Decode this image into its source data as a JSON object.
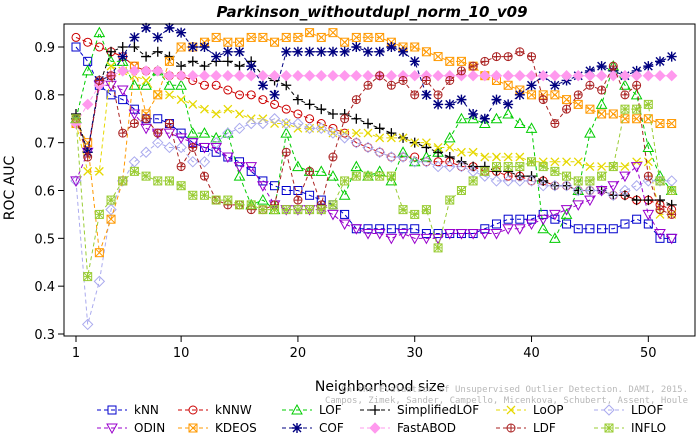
{
  "chart_data": {
    "type": "line",
    "title": "Parkinson_withoutdupl_norm_10_v09",
    "xlabel": "Neighborhood size",
    "ylabel": "ROC AUC",
    "xlim": [
      1,
      52
    ],
    "ylim": [
      0.3,
      0.95
    ],
    "xticks": [
      "1",
      "10",
      "20",
      "30",
      "40",
      "50"
    ],
    "yticks": [
      "0.3",
      "0.4",
      "0.5",
      "0.6",
      "0.7",
      "0.8",
      "0.9"
    ],
    "grid": false,
    "legend_position": "bottom",
    "credit": "Campos, Zimek, Sander, Campello, Micenkova, Schubert, Assent, Houle",
    "credit_line1": "On the Evaluation of Unsupervised Outlier Detection. DAMI, 2015.",
    "x": [
      1,
      2,
      3,
      4,
      5,
      6,
      7,
      8,
      9,
      10,
      11,
      12,
      13,
      14,
      15,
      16,
      17,
      18,
      19,
      20,
      21,
      22,
      23,
      24,
      25,
      26,
      27,
      28,
      29,
      30,
      31,
      32,
      33,
      34,
      35,
      36,
      37,
      38,
      39,
      40,
      41,
      42,
      43,
      44,
      45,
      46,
      47,
      48,
      49,
      50,
      51,
      52
    ],
    "series": [
      {
        "name": "kNN",
        "color": "#0000cc",
        "marker": "square",
        "values": [
          0.9,
          0.87,
          0.82,
          0.8,
          0.79,
          0.77,
          0.75,
          0.75,
          0.74,
          0.72,
          0.7,
          0.69,
          0.68,
          0.67,
          0.66,
          0.64,
          0.62,
          0.61,
          0.6,
          0.6,
          0.59,
          0.58,
          0.57,
          0.55,
          0.52,
          0.52,
          0.52,
          0.52,
          0.52,
          0.52,
          0.51,
          0.51,
          0.51,
          0.51,
          0.51,
          0.52,
          0.53,
          0.54,
          0.54,
          0.54,
          0.55,
          0.54,
          0.53,
          0.52,
          0.52,
          0.52,
          0.52,
          0.53,
          0.54,
          0.53,
          0.5,
          0.5
        ]
      },
      {
        "name": "kNNW",
        "color": "#cc0000",
        "marker": "circle",
        "values": [
          0.92,
          0.91,
          0.9,
          0.89,
          0.88,
          0.86,
          0.85,
          0.85,
          0.84,
          0.84,
          0.83,
          0.82,
          0.82,
          0.81,
          0.8,
          0.8,
          0.79,
          0.78,
          0.77,
          0.76,
          0.75,
          0.74,
          0.73,
          0.72,
          0.7,
          0.69,
          0.68,
          0.67,
          0.67,
          0.67,
          0.66,
          0.66,
          0.66,
          0.65,
          0.65,
          0.64,
          0.64,
          0.63,
          0.63,
          0.62,
          0.62,
          0.61,
          0.61,
          0.6,
          0.6,
          0.6,
          0.59,
          0.59,
          0.58,
          0.58,
          0.57,
          0.56
        ]
      },
      {
        "name": "LOF",
        "color": "#00cc00",
        "marker": "triangle-up",
        "values": [
          0.75,
          0.85,
          0.93,
          0.87,
          0.87,
          0.82,
          0.82,
          0.85,
          0.82,
          0.82,
          0.72,
          0.72,
          0.71,
          0.72,
          0.63,
          0.57,
          0.58,
          0.56,
          0.72,
          0.65,
          0.64,
          0.64,
          0.63,
          0.59,
          0.65,
          0.63,
          0.64,
          0.62,
          0.68,
          0.66,
          0.67,
          0.68,
          0.71,
          0.75,
          0.75,
          0.74,
          0.75,
          0.76,
          0.74,
          0.73,
          0.52,
          0.5,
          0.55,
          0.6,
          0.72,
          0.78,
          0.86,
          0.82,
          0.8,
          0.69,
          0.63,
          0.6
        ]
      },
      {
        "name": "SimplifiedLOF",
        "color": "#000000",
        "marker": "plus",
        "values": [
          0.76,
          0.68,
          0.82,
          0.89,
          0.9,
          0.9,
          0.88,
          0.89,
          0.88,
          0.86,
          0.87,
          0.86,
          0.87,
          0.87,
          0.86,
          0.87,
          0.84,
          0.83,
          0.82,
          0.79,
          0.78,
          0.77,
          0.76,
          0.76,
          0.75,
          0.74,
          0.73,
          0.72,
          0.71,
          0.7,
          0.69,
          0.68,
          0.67,
          0.66,
          0.65,
          0.65,
          0.64,
          0.64,
          0.63,
          0.63,
          0.62,
          0.61,
          0.61,
          0.6,
          0.6,
          0.6,
          0.59,
          0.59,
          0.58,
          0.58,
          0.58,
          0.57
        ]
      },
      {
        "name": "LoOP",
        "color": "#e6d800",
        "marker": "x",
        "values": [
          0.74,
          0.64,
          0.64,
          0.86,
          0.85,
          0.84,
          0.83,
          0.8,
          0.8,
          0.79,
          0.78,
          0.77,
          0.76,
          0.77,
          0.76,
          0.75,
          0.75,
          0.74,
          0.74,
          0.73,
          0.73,
          0.73,
          0.72,
          0.72,
          0.72,
          0.72,
          0.71,
          0.71,
          0.71,
          0.7,
          0.7,
          0.69,
          0.69,
          0.68,
          0.68,
          0.67,
          0.67,
          0.67,
          0.67,
          0.66,
          0.66,
          0.66,
          0.66,
          0.66,
          0.65,
          0.65,
          0.65,
          0.65,
          0.66,
          0.66,
          0.55,
          0.55
        ]
      },
      {
        "name": "LDOF",
        "color": "#aaaaee",
        "marker": "diamond",
        "values": [
          0.62,
          0.32,
          0.41,
          0.56,
          0.62,
          0.66,
          0.68,
          0.7,
          0.69,
          0.69,
          0.66,
          0.66,
          0.7,
          0.72,
          0.73,
          0.74,
          0.74,
          0.75,
          0.74,
          0.74,
          0.73,
          0.73,
          0.72,
          0.71,
          0.7,
          0.69,
          0.68,
          0.67,
          0.67,
          0.66,
          0.66,
          0.65,
          0.65,
          0.65,
          0.64,
          0.63,
          0.62,
          0.62,
          0.62,
          0.62,
          0.61,
          0.61,
          0.61,
          0.6,
          0.6,
          0.6,
          0.59,
          0.6,
          0.61,
          0.62,
          0.62,
          0.62
        ]
      },
      {
        "name": "ODIN",
        "color": "#9900cc",
        "marker": "triangle-down",
        "values": [
          0.62,
          0.68,
          0.82,
          0.82,
          0.81,
          0.76,
          0.73,
          0.72,
          0.72,
          0.71,
          0.7,
          0.69,
          0.69,
          0.67,
          0.65,
          0.65,
          0.61,
          0.57,
          0.56,
          0.56,
          0.56,
          0.56,
          0.55,
          0.53,
          0.52,
          0.51,
          0.51,
          0.5,
          0.51,
          0.5,
          0.5,
          0.5,
          0.51,
          0.51,
          0.51,
          0.51,
          0.51,
          0.52,
          0.52,
          0.53,
          0.54,
          0.55,
          0.56,
          0.57,
          0.58,
          0.6,
          0.61,
          0.63,
          0.65,
          0.55,
          0.51,
          0.5
        ]
      },
      {
        "name": "KDEOS",
        "color": "#ff9900",
        "marker": "square-x",
        "values": [
          0.74,
          0.7,
          0.47,
          0.54,
          0.62,
          0.86,
          0.76,
          0.8,
          0.87,
          0.9,
          0.9,
          0.91,
          0.92,
          0.91,
          0.91,
          0.92,
          0.92,
          0.91,
          0.92,
          0.92,
          0.93,
          0.92,
          0.93,
          0.91,
          0.92,
          0.92,
          0.92,
          0.91,
          0.9,
          0.9,
          0.89,
          0.88,
          0.87,
          0.87,
          0.86,
          0.84,
          0.83,
          0.82,
          0.81,
          0.8,
          0.8,
          0.8,
          0.79,
          0.78,
          0.77,
          0.76,
          0.76,
          0.75,
          0.75,
          0.75,
          0.74,
          0.74
        ]
      },
      {
        "name": "COF",
        "color": "#000080",
        "marker": "asterisk",
        "values": [
          0.75,
          0.68,
          0.83,
          0.84,
          0.88,
          0.92,
          0.94,
          0.92,
          0.94,
          0.93,
          0.9,
          0.9,
          0.88,
          0.89,
          0.89,
          0.86,
          0.82,
          0.8,
          0.89,
          0.89,
          0.89,
          0.89,
          0.89,
          0.89,
          0.9,
          0.89,
          0.89,
          0.9,
          0.89,
          0.87,
          0.8,
          0.78,
          0.78,
          0.79,
          0.76,
          0.75,
          0.79,
          0.78,
          0.8,
          0.82,
          0.84,
          0.82,
          0.83,
          0.84,
          0.85,
          0.86,
          0.85,
          0.84,
          0.85,
          0.86,
          0.87,
          0.88
        ]
      },
      {
        "name": "FastABOD",
        "color": "#ff99ee",
        "marker": "diamond-filled",
        "values": [
          0.74,
          0.78,
          0.82,
          0.84,
          0.85,
          0.85,
          0.85,
          0.85,
          0.84,
          0.84,
          0.84,
          0.84,
          0.84,
          0.84,
          0.84,
          0.84,
          0.84,
          0.84,
          0.84,
          0.84,
          0.84,
          0.84,
          0.84,
          0.84,
          0.84,
          0.84,
          0.84,
          0.84,
          0.84,
          0.84,
          0.84,
          0.84,
          0.84,
          0.84,
          0.84,
          0.84,
          0.84,
          0.84,
          0.84,
          0.84,
          0.84,
          0.84,
          0.84,
          0.84,
          0.84,
          0.84,
          0.84,
          0.84,
          0.84,
          0.84,
          0.84,
          0.84
        ]
      },
      {
        "name": "LDF",
        "color": "#aa2222",
        "marker": "circle-plus",
        "values": [
          0.75,
          0.67,
          0.83,
          0.84,
          0.72,
          0.74,
          0.75,
          0.72,
          0.74,
          0.65,
          0.69,
          0.63,
          0.58,
          0.57,
          0.57,
          0.56,
          0.56,
          0.57,
          0.68,
          0.58,
          0.64,
          0.57,
          0.67,
          0.75,
          0.79,
          0.82,
          0.84,
          0.82,
          0.83,
          0.8,
          0.83,
          0.8,
          0.83,
          0.85,
          0.86,
          0.87,
          0.88,
          0.88,
          0.89,
          0.88,
          0.79,
          0.74,
          0.77,
          0.8,
          0.82,
          0.81,
          0.86,
          0.8,
          0.82,
          0.63,
          0.56,
          0.55
        ]
      },
      {
        "name": "INFLO",
        "color": "#99cc33",
        "marker": "star-box",
        "values": [
          0.75,
          0.42,
          0.55,
          0.58,
          0.62,
          0.64,
          0.63,
          0.62,
          0.62,
          0.61,
          0.59,
          0.59,
          0.58,
          0.58,
          0.57,
          0.57,
          0.56,
          0.56,
          0.56,
          0.56,
          0.56,
          0.56,
          0.57,
          0.62,
          0.63,
          0.63,
          0.63,
          0.63,
          0.56,
          0.55,
          0.56,
          0.48,
          0.58,
          0.6,
          0.62,
          0.64,
          0.65,
          0.65,
          0.65,
          0.66,
          0.65,
          0.64,
          0.63,
          0.62,
          0.62,
          0.63,
          0.65,
          0.77,
          0.77,
          0.78,
          0.62,
          0.6
        ]
      }
    ]
  }
}
